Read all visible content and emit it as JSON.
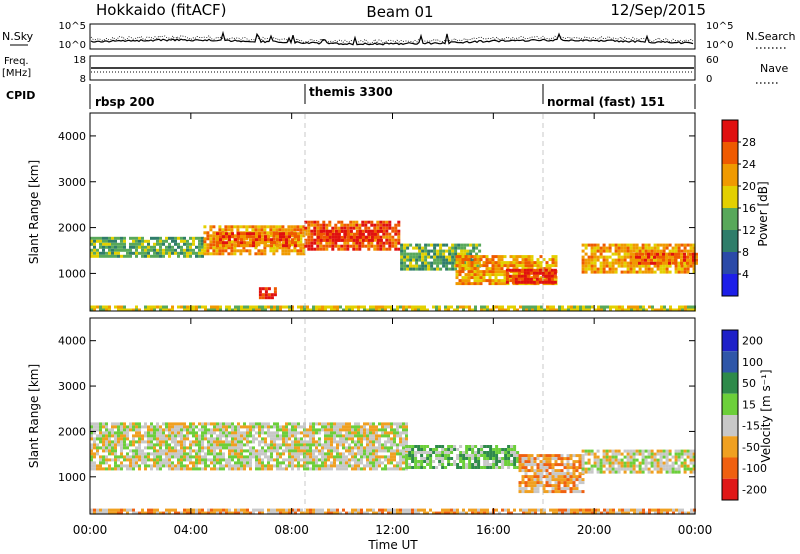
{
  "header": {
    "station": "Hokkaido (fitACF)",
    "beam": "Beam 01",
    "date": "12/Sep/2015"
  },
  "sky_panel": {
    "left_label": "N.Sky",
    "right_label": "N.Search",
    "left_ticks": [
      "10^5",
      "10^0"
    ],
    "right_ticks": [
      "10^5",
      "10^0"
    ],
    "right_line_style": "dotted"
  },
  "freq_panel": {
    "left_label_1": "Freq.",
    "left_label_2": "[MHz]",
    "right_label": "Nave",
    "left_ticks": [
      "18",
      "8"
    ],
    "right_ticks": [
      "60",
      "0"
    ],
    "right_line_style": "dotted"
  },
  "cpid_panel": {
    "label": "CPID",
    "modes": [
      {
        "name": "rbsp 200",
        "start_hour": 0
      },
      {
        "name": "themis 3300",
        "start_hour": 8.5
      },
      {
        "name": "normal (fast) 151",
        "start_hour": 18
      }
    ]
  },
  "x_axis": {
    "label": "Time UT",
    "ticks": [
      "00:00",
      "04:00",
      "08:00",
      "12:00",
      "16:00",
      "20:00",
      "00:00"
    ]
  },
  "power_panel": {
    "ylabel": "Slant Range [km]",
    "yticks": [
      "1000",
      "2000",
      "3000",
      "4000"
    ],
    "colorbar_label": "Power [dB]",
    "colorbar_ticks": [
      "4",
      "8",
      "12",
      "16",
      "20",
      "24",
      "28"
    ],
    "colorbar_colors": [
      "#1d1fe8",
      "#2b4aa8",
      "#2f7d6a",
      "#58a85a",
      "#e3d000",
      "#f09a00",
      "#ef5a00",
      "#e01010"
    ]
  },
  "velocity_panel": {
    "ylabel": "Slant Range [km]",
    "yticks": [
      "1000",
      "2000",
      "3000",
      "4000"
    ],
    "colorbar_label": "Velocity [m s⁻¹]",
    "colorbar_ticks": [
      "200",
      "100",
      "50",
      "15",
      "-15",
      "-50",
      "-100",
      "-200"
    ],
    "colorbar_colors": [
      "#1f20c8",
      "#2f56a8",
      "#2e8a4a",
      "#6ccf3a",
      "#c8c8c8",
      "#f0a020",
      "#f06010",
      "#e01818"
    ]
  },
  "chart_data": {
    "type": "heatmap",
    "x_range_hours": [
      0,
      24
    ],
    "y_range_km": [
      180,
      4500
    ],
    "power_regions": [
      {
        "t0": 0.0,
        "t1": 4.5,
        "r0": 1350,
        "r1": 1800,
        "level": 3
      },
      {
        "t0": 4.5,
        "t1": 8.5,
        "r0": 1450,
        "r1": 2050,
        "level": 5
      },
      {
        "t0": 5.0,
        "t1": 8.3,
        "r0": 1600,
        "r1": 1900,
        "level": 6
      },
      {
        "t0": 8.5,
        "t1": 12.3,
        "r0": 1500,
        "r1": 2150,
        "level": 6
      },
      {
        "t0": 9.0,
        "t1": 11.5,
        "r0": 1700,
        "r1": 1950,
        "level": 7
      },
      {
        "t0": 12.3,
        "t1": 15.5,
        "r0": 1100,
        "r1": 1650,
        "level": 3
      },
      {
        "t0": 14.5,
        "t1": 18.5,
        "r0": 800,
        "r1": 1400,
        "level": 5
      },
      {
        "t0": 16.5,
        "t1": 18.5,
        "r0": 800,
        "r1": 1100,
        "level": 7
      },
      {
        "t0": 19.5,
        "t1": 24.0,
        "r0": 1050,
        "r1": 1650,
        "level": 5
      },
      {
        "t0": 21.5,
        "t1": 24.0,
        "r0": 1200,
        "r1": 1450,
        "level": 6
      },
      {
        "t0": 6.7,
        "t1": 7.3,
        "r0": 500,
        "r1": 700,
        "level": 7
      },
      {
        "t0": 0.0,
        "t1": 24.0,
        "r0": 180,
        "r1": 300,
        "level": 4
      }
    ],
    "velocity_regions": [
      {
        "t0": 0.0,
        "t1": 12.5,
        "r0": 1200,
        "r1": 2200,
        "level": 4
      },
      {
        "t0": 12.5,
        "t1": 17.0,
        "r0": 1200,
        "r1": 1700,
        "level": 3
      },
      {
        "t0": 17.0,
        "t1": 19.5,
        "r0": 700,
        "r1": 1500,
        "level": 5
      },
      {
        "t0": 19.5,
        "t1": 24.0,
        "r0": 1100,
        "r1": 1600,
        "level": 4
      },
      {
        "t0": 0.0,
        "t1": 24.0,
        "r0": 180,
        "r1": 300,
        "level": 5
      }
    ]
  }
}
